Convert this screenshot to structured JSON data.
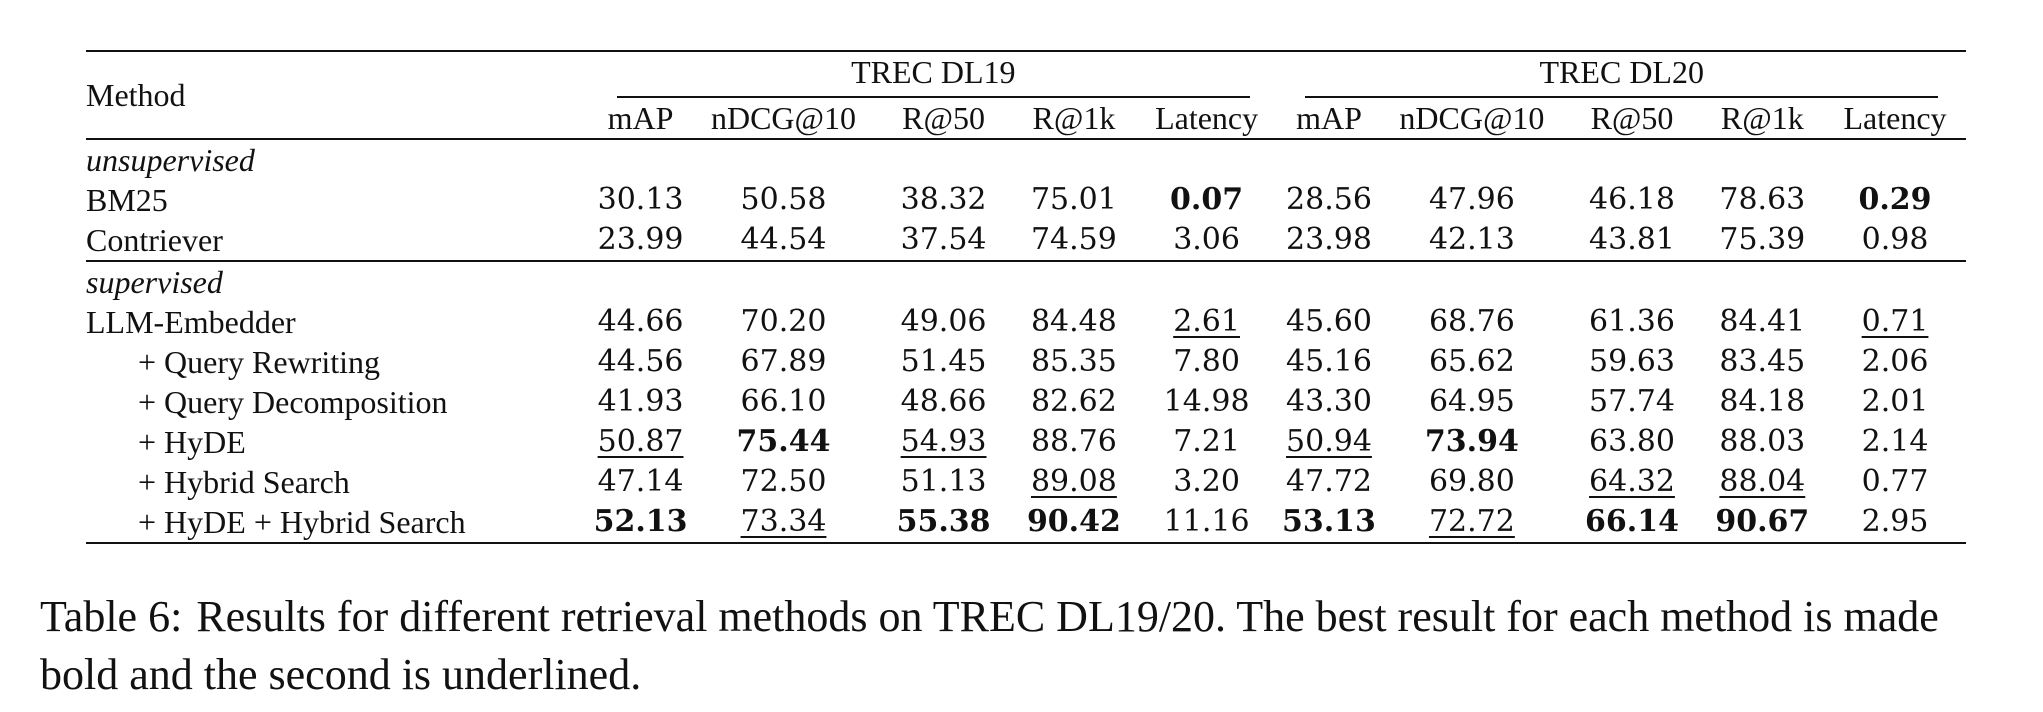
{
  "table": {
    "method_header": "Method",
    "groups": [
      "TREC DL19",
      "TREC DL20"
    ],
    "metrics": [
      "mAP",
      "nDCG@10",
      "R@50",
      "R@1k",
      "Latency"
    ],
    "sections": [
      {
        "label": "unsupervised",
        "rows": [
          {
            "name": "BM25",
            "sub": false,
            "cells": [
              {
                "v": "30.13",
                "s": ""
              },
              {
                "v": "50.58",
                "s": ""
              },
              {
                "v": "38.32",
                "s": ""
              },
              {
                "v": "75.01",
                "s": ""
              },
              {
                "v": "0.07",
                "s": "b"
              },
              {
                "v": "28.56",
                "s": ""
              },
              {
                "v": "47.96",
                "s": ""
              },
              {
                "v": "46.18",
                "s": ""
              },
              {
                "v": "78.63",
                "s": ""
              },
              {
                "v": "0.29",
                "s": "b"
              }
            ]
          },
          {
            "name": "Contriever",
            "sub": false,
            "cells": [
              {
                "v": "23.99",
                "s": ""
              },
              {
                "v": "44.54",
                "s": ""
              },
              {
                "v": "37.54",
                "s": ""
              },
              {
                "v": "74.59",
                "s": ""
              },
              {
                "v": "3.06",
                "s": ""
              },
              {
                "v": "23.98",
                "s": ""
              },
              {
                "v": "42.13",
                "s": ""
              },
              {
                "v": "43.81",
                "s": ""
              },
              {
                "v": "75.39",
                "s": ""
              },
              {
                "v": "0.98",
                "s": ""
              }
            ]
          }
        ]
      },
      {
        "label": "supervised",
        "rows": [
          {
            "name": "LLM-Embedder",
            "sub": false,
            "cells": [
              {
                "v": "44.66",
                "s": ""
              },
              {
                "v": "70.20",
                "s": ""
              },
              {
                "v": "49.06",
                "s": ""
              },
              {
                "v": "84.48",
                "s": ""
              },
              {
                "v": "2.61",
                "s": "u"
              },
              {
                "v": "45.60",
                "s": ""
              },
              {
                "v": "68.76",
                "s": ""
              },
              {
                "v": "61.36",
                "s": ""
              },
              {
                "v": "84.41",
                "s": ""
              },
              {
                "v": "0.71",
                "s": "u"
              }
            ]
          },
          {
            "name": "+ Query Rewriting",
            "sub": true,
            "cells": [
              {
                "v": "44.56",
                "s": ""
              },
              {
                "v": "67.89",
                "s": ""
              },
              {
                "v": "51.45",
                "s": ""
              },
              {
                "v": "85.35",
                "s": ""
              },
              {
                "v": "7.80",
                "s": ""
              },
              {
                "v": "45.16",
                "s": ""
              },
              {
                "v": "65.62",
                "s": ""
              },
              {
                "v": "59.63",
                "s": ""
              },
              {
                "v": "83.45",
                "s": ""
              },
              {
                "v": "2.06",
                "s": ""
              }
            ]
          },
          {
            "name": "+ Query Decomposition",
            "sub": true,
            "cells": [
              {
                "v": "41.93",
                "s": ""
              },
              {
                "v": "66.10",
                "s": ""
              },
              {
                "v": "48.66",
                "s": ""
              },
              {
                "v": "82.62",
                "s": ""
              },
              {
                "v": "14.98",
                "s": ""
              },
              {
                "v": "43.30",
                "s": ""
              },
              {
                "v": "64.95",
                "s": ""
              },
              {
                "v": "57.74",
                "s": ""
              },
              {
                "v": "84.18",
                "s": ""
              },
              {
                "v": "2.01",
                "s": ""
              }
            ]
          },
          {
            "name": "+ HyDE",
            "sub": true,
            "cells": [
              {
                "v": "50.87",
                "s": "u"
              },
              {
                "v": "75.44",
                "s": "b"
              },
              {
                "v": "54.93",
                "s": "u"
              },
              {
                "v": "88.76",
                "s": ""
              },
              {
                "v": "7.21",
                "s": ""
              },
              {
                "v": "50.94",
                "s": "u"
              },
              {
                "v": "73.94",
                "s": "b"
              },
              {
                "v": "63.80",
                "s": ""
              },
              {
                "v": "88.03",
                "s": ""
              },
              {
                "v": "2.14",
                "s": ""
              }
            ]
          },
          {
            "name": "+ Hybrid Search",
            "sub": true,
            "cells": [
              {
                "v": "47.14",
                "s": ""
              },
              {
                "v": "72.50",
                "s": ""
              },
              {
                "v": "51.13",
                "s": ""
              },
              {
                "v": "89.08",
                "s": "u"
              },
              {
                "v": "3.20",
                "s": ""
              },
              {
                "v": "47.72",
                "s": ""
              },
              {
                "v": "69.80",
                "s": ""
              },
              {
                "v": "64.32",
                "s": "u"
              },
              {
                "v": "88.04",
                "s": "u"
              },
              {
                "v": "0.77",
                "s": ""
              }
            ]
          },
          {
            "name": "+ HyDE + Hybrid Search",
            "sub": true,
            "cells": [
              {
                "v": "52.13",
                "s": "b"
              },
              {
                "v": "73.34",
                "s": "u"
              },
              {
                "v": "55.38",
                "s": "b"
              },
              {
                "v": "90.42",
                "s": "b"
              },
              {
                "v": "11.16",
                "s": ""
              },
              {
                "v": "53.13",
                "s": "b"
              },
              {
                "v": "72.72",
                "s": "u"
              },
              {
                "v": "66.14",
                "s": "b"
              },
              {
                "v": "90.67",
                "s": "b"
              },
              {
                "v": "2.95",
                "s": ""
              }
            ]
          }
        ]
      }
    ]
  },
  "caption": {
    "label": "Table 6:",
    "text": "Results for different retrieval methods on TREC DL19/20. The best result for each method is made bold and the second is underlined."
  }
}
